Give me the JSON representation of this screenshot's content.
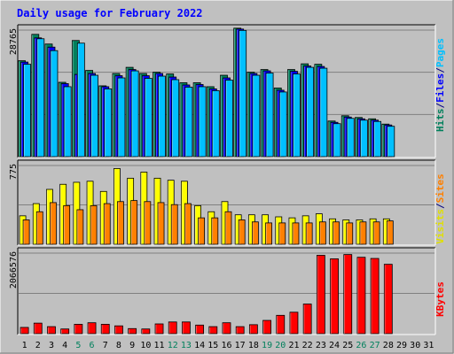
{
  "chart_data": {
    "type": "bar",
    "title": "Daily usage for February 2022",
    "categories": [
      "1",
      "2",
      "3",
      "4",
      "5",
      "6",
      "7",
      "8",
      "9",
      "10",
      "11",
      "12",
      "13",
      "14",
      "15",
      "16",
      "17",
      "18",
      "19",
      "20",
      "21",
      "22",
      "23",
      "24",
      "25",
      "26",
      "27",
      "28",
      "29",
      "30",
      "31"
    ],
    "weekend_days": [
      "5",
      "6",
      "12",
      "13",
      "19",
      "20",
      "26",
      "27"
    ],
    "panels": [
      {
        "id": "hits-files-pages",
        "ymax_label": "28765",
        "ylim": [
          0,
          28765
        ],
        "legend": [
          {
            "text": "Hits",
            "color": "#00805c"
          },
          {
            "text": "/",
            "color": "#000080"
          },
          {
            "text": "Files",
            "color": "#0000ff"
          },
          {
            "text": "/",
            "color": "#000080"
          },
          {
            "text": "Pages",
            "color": "#00c0ff"
          }
        ],
        "series": [
          {
            "name": "Hits",
            "color": "#00805c",
            "values": [
              21800,
              27800,
              25600,
              16900,
              26400,
              19600,
              16100,
              18900,
              20300,
              18900,
              19200,
              18800,
              16800,
              16800,
              15900,
              18500,
              29200,
              19200,
              19800,
              15600,
              19800,
              21100,
              21000,
              8100,
              9300,
              8900,
              8600,
              7400,
              null,
              null,
              null
            ]
          },
          {
            "name": "Files",
            "color": "#0000ff",
            "values": [
              21500,
              27000,
              24900,
              16600,
              18700,
              18900,
              15900,
              18400,
              19800,
              18400,
              18900,
              18100,
              16300,
              16400,
              15400,
              17900,
              29000,
              18900,
              19500,
              15100,
              19400,
              20600,
              20500,
              7800,
              9000,
              8600,
              8300,
              7200,
              null,
              null,
              null
            ]
          },
          {
            "name": "Pages",
            "color": "#00c0ff",
            "values": [
              21000,
              26800,
              24100,
              15900,
              25800,
              18500,
              15400,
              17900,
              19500,
              17800,
              18300,
              17500,
              15800,
              15900,
              15000,
              17400,
              28700,
              18500,
              19000,
              14700,
              18800,
              20300,
              20100,
              7500,
              8700,
              8300,
              8000,
              6900,
              null,
              null,
              null
            ]
          }
        ]
      },
      {
        "id": "visits-sites",
        "ymax_label": "775",
        "ylim": [
          0,
          775
        ],
        "legend": [
          {
            "text": "Visits",
            "color": "#e0e000"
          },
          {
            "text": "/",
            "color": "#000080"
          },
          {
            "text": "Sites",
            "color": "#ff8000"
          }
        ],
        "series": [
          {
            "name": "Visits",
            "color": "#ffff00",
            "values": [
              280,
              400,
              540,
              590,
              610,
              620,
              520,
              745,
              650,
              710,
              650,
              630,
              620,
              380,
              320,
              420,
              290,
              290,
              290,
              270,
              260,
              280,
              300,
              250,
              240,
              240,
              250,
              250,
              null,
              null,
              null
            ]
          },
          {
            "name": "Sites",
            "color": "#ff8000",
            "values": [
              240,
              320,
              410,
              380,
              340,
              380,
              400,
              420,
              430,
              420,
              410,
              390,
              400,
              260,
              260,
              320,
              240,
              220,
              210,
              210,
              210,
              210,
              220,
              220,
              210,
              220,
              220,
              230,
              null,
              null,
              null
            ]
          }
        ]
      },
      {
        "id": "kbytes",
        "ymax_label": "2066576",
        "ylim": [
          0,
          2066576
        ],
        "legend": [
          {
            "text": "KBytes",
            "color": "#ff0000"
          }
        ],
        "series": [
          {
            "name": "KBytes",
            "color": "#ff0000",
            "values": [
              160000,
              270000,
              180000,
              120000,
              240000,
              280000,
              240000,
              200000,
              130000,
              120000,
              250000,
              300000,
              300000,
              220000,
              180000,
              280000,
              180000,
              230000,
              340000,
              470000,
              550000,
              760000,
              2010000,
              1920000,
              2030000,
              1960000,
              1930000,
              1780000,
              null,
              null,
              null
            ]
          }
        ]
      }
    ]
  }
}
